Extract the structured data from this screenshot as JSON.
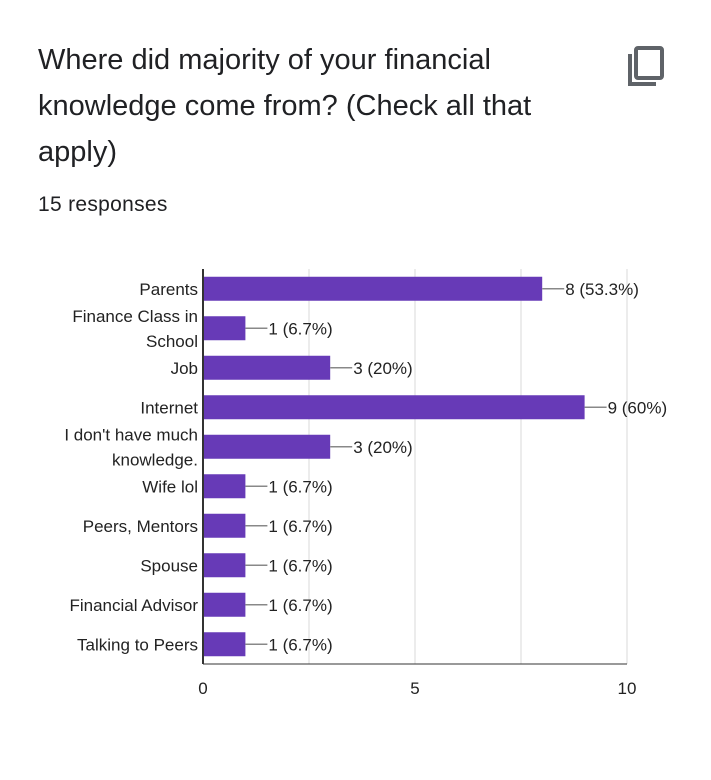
{
  "question": {
    "title": "Where did majority of your financial knowledge come from? (Check all that apply)",
    "copy_icon": "copy-icon"
  },
  "responses": {
    "count_label": "15 responses"
  },
  "colors": {
    "bar": "#673ab7",
    "grid": "#e6e6e6",
    "axis": "#333333",
    "text": "#202124"
  },
  "chart_data": {
    "type": "bar",
    "orientation": "horizontal",
    "categories": [
      [
        "Parents"
      ],
      [
        "Finance Class in",
        "School"
      ],
      [
        "Job"
      ],
      [
        "Internet"
      ],
      [
        "I don't have much",
        "knowledge."
      ],
      [
        "Wife lol"
      ],
      [
        "Peers, Mentors"
      ],
      [
        "Spouse"
      ],
      [
        "Financial Advisor"
      ],
      [
        "Talking to Peers"
      ]
    ],
    "values": [
      8,
      1,
      3,
      9,
      3,
      1,
      1,
      1,
      1,
      1
    ],
    "data_labels": [
      "8 (53.3%)",
      "1 (6.7%)",
      "3 (20%)",
      "9 (60%)",
      "3 (20%)",
      "1 (6.7%)",
      "1 (6.7%)",
      "1 (6.7%)",
      "1 (6.7%)",
      "1 (6.7%)"
    ],
    "xlim": [
      0,
      10
    ],
    "x_ticks": [
      0,
      5,
      10
    ],
    "grid": true
  }
}
